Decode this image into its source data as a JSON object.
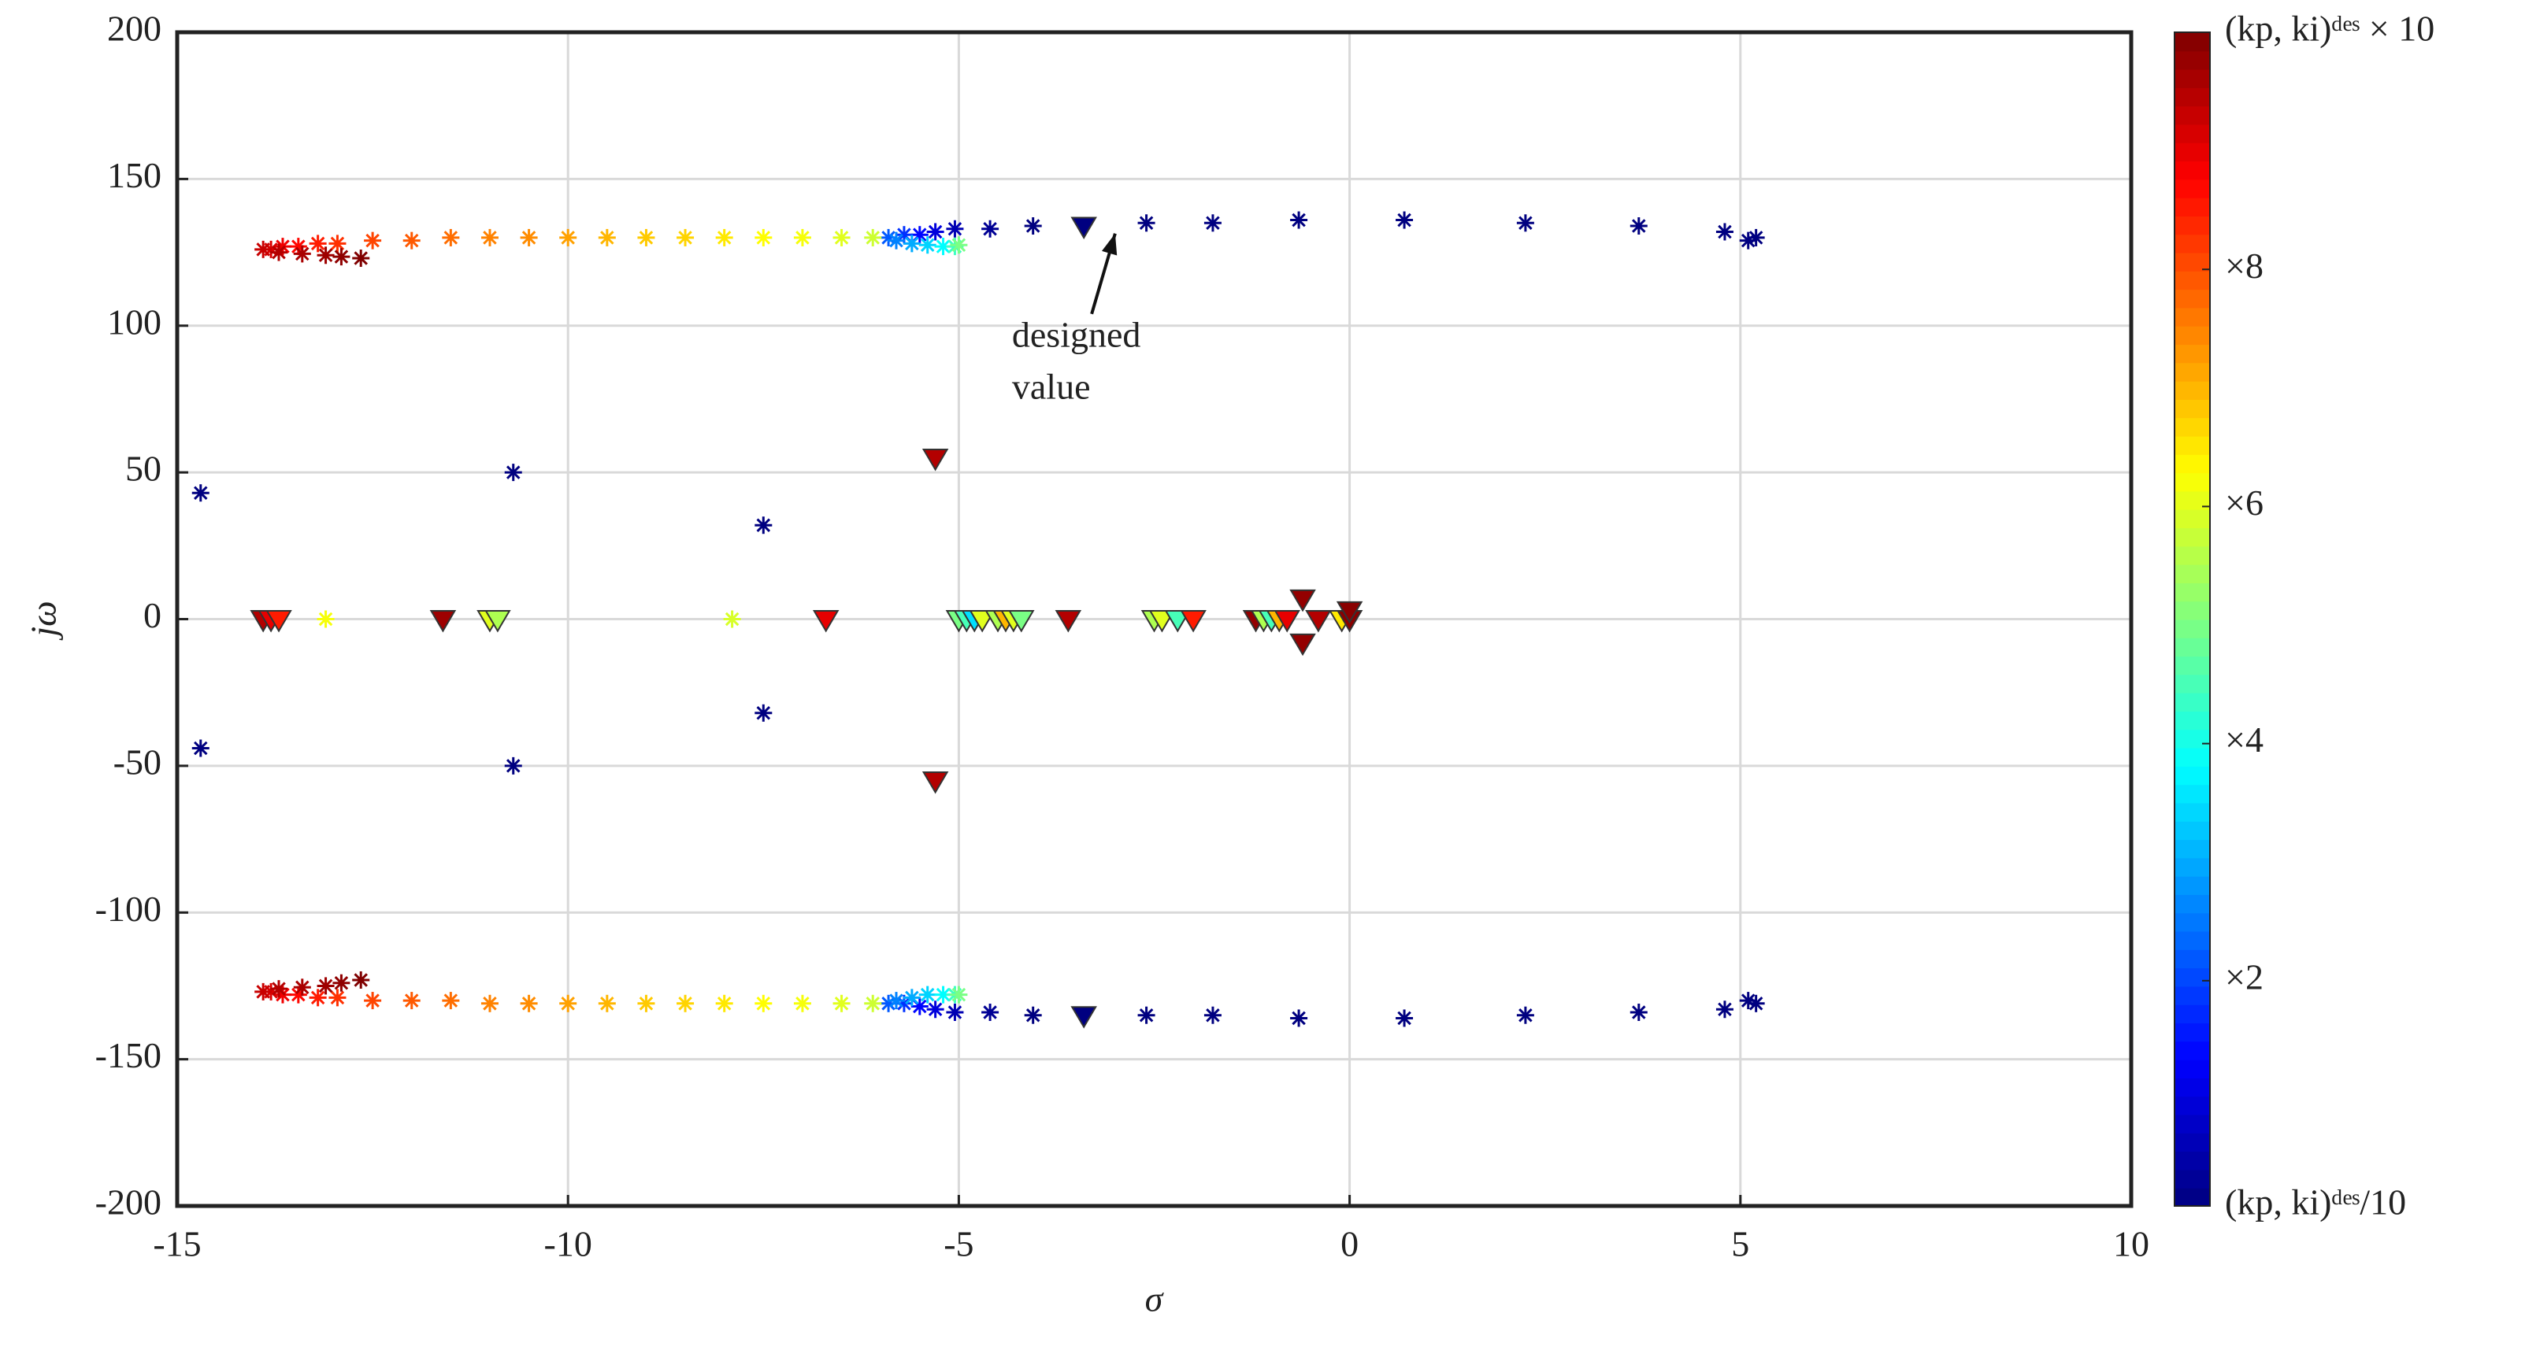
{
  "chart_data": {
    "type": "scatter",
    "xlabel": "σ",
    "ylabel": "jω",
    "xlim": [
      -15,
      10
    ],
    "xticks": [
      -15,
      -10,
      -5,
      0,
      5,
      10
    ],
    "ylim": [
      -200,
      200
    ],
    "yticks": [
      -200,
      -150,
      -100,
      -50,
      0,
      50,
      100,
      150,
      200
    ],
    "grid": true,
    "colormap": "jet",
    "clim": [
      0.1,
      10
    ],
    "cticks": [
      {
        "value": 0.1,
        "label": "(kp, ki)ᵈᵉˢ/10"
      },
      {
        "value": 2,
        "label": "×2"
      },
      {
        "value": 4,
        "label": "×4"
      },
      {
        "value": 6,
        "label": "×6"
      },
      {
        "value": 8,
        "label": "×8"
      },
      {
        "value": 10,
        "label": "(kp, ki)ᵈᵉˢ × 10"
      }
    ],
    "annotation": [
      "designed",
      "value"
    ],
    "series": [
      {
        "marker": "asterisk",
        "x": [
          5.2,
          5.1,
          4.8,
          3.7,
          2.25,
          0.7,
          -0.65,
          -1.75,
          -2.6,
          -4.05,
          -4.6,
          -5.05,
          -5.3,
          -5.5,
          -5.7,
          -5.9,
          -5.8,
          -5.6,
          -5.4,
          -5.2,
          -5.05,
          -5.0,
          -6.1,
          -6.5,
          -7,
          -7.5,
          -8,
          -8.5,
          -9,
          -9.5,
          -10,
          -10.5,
          -11,
          -11.5,
          -12,
          -12.5,
          -12.95,
          -13.2,
          -13.45,
          -13.65,
          -13.8,
          -13.9,
          -13.7,
          -13.4,
          -13.1,
          -12.9,
          -12.65,
          5.2,
          5.1,
          4.8,
          3.7,
          2.25,
          0.7,
          -0.65,
          -1.75,
          -2.6,
          -4.05,
          -4.6,
          -5.05,
          -5.3,
          -5.5,
          -5.7,
          -5.9,
          -5.8,
          -5.6,
          -5.4,
          -5.2,
          -5.05,
          -5.0,
          -6.1,
          -6.5,
          -7,
          -7.5,
          -8,
          -8.5,
          -9,
          -9.5,
          -10,
          -10.5,
          -11,
          -11.5,
          -12,
          -12.5,
          -12.95,
          -13.2,
          -13.45,
          -13.65,
          -13.8,
          -13.9,
          -13.7,
          -13.4,
          -13.1,
          -12.9,
          -12.65,
          -13.1,
          -7.9,
          -14.7,
          -14.7,
          -10.7,
          -10.7,
          -7.5,
          -7.5
        ],
        "y": [
          130,
          129,
          132,
          134,
          135,
          136,
          136,
          135,
          135,
          134,
          133,
          133,
          132,
          131,
          131,
          130,
          129,
          128,
          127.5,
          127,
          127,
          127.5,
          130,
          130,
          130,
          130,
          130,
          130,
          130,
          130,
          130,
          130,
          130,
          130,
          129,
          129,
          128,
          128,
          127,
          127,
          126,
          126,
          125,
          124.5,
          124,
          123.5,
          123,
          -131,
          -130,
          -133,
          -134,
          -135,
          -136,
          -136,
          -135,
          -135,
          -135,
          -134,
          -134,
          -133,
          -132,
          -131,
          -131,
          -130,
          -129,
          -128,
          -128,
          -128,
          -128,
          -131,
          -131,
          -131,
          -131,
          -131,
          -131,
          -131,
          -131,
          -131,
          -131,
          -131,
          -130,
          -130,
          -130,
          -129,
          -129,
          -128,
          -128,
          -127,
          -127,
          -126,
          -125.5,
          -125,
          -124,
          -123,
          0,
          0,
          43,
          -44,
          50,
          -50,
          32,
          -32
        ],
        "c": [
          0.1,
          0.1,
          0.1,
          0.1,
          0.1,
          0.1,
          0.1,
          0.1,
          0.1,
          0.1,
          0.3,
          0.6,
          1.0,
          1.4,
          1.8,
          2.2,
          2.6,
          3.0,
          3.4,
          3.8,
          4.4,
          5.0,
          5.8,
          6.0,
          6.2,
          6.3,
          6.5,
          6.7,
          6.8,
          7.0,
          7.2,
          7.4,
          7.5,
          7.7,
          7.9,
          8.1,
          8.3,
          8.5,
          8.7,
          8.9,
          9.1,
          9.3,
          9.5,
          9.6,
          9.7,
          9.85,
          10,
          0.1,
          0.1,
          0.1,
          0.1,
          0.1,
          0.1,
          0.1,
          0.1,
          0.1,
          0.1,
          0.3,
          0.6,
          1.0,
          1.4,
          1.8,
          2.2,
          2.6,
          3.0,
          3.4,
          3.8,
          4.4,
          5.0,
          5.8,
          6.0,
          6.2,
          6.3,
          6.5,
          6.7,
          6.8,
          7.0,
          7.2,
          7.4,
          7.5,
          7.7,
          7.9,
          8.1,
          8.3,
          8.5,
          8.7,
          8.9,
          9.1,
          9.3,
          9.5,
          9.6,
          9.7,
          9.85,
          10,
          6.2,
          5.9,
          0.1,
          0.1,
          0.1,
          0.1,
          0.1,
          0.1
        ]
      },
      {
        "marker": "triangle",
        "x": [
          -13.9,
          -13.8,
          -13.7,
          -11.6,
          -11.0,
          -10.9,
          -6.7,
          -5.3,
          -5.3,
          -5.0,
          -4.9,
          -4.8,
          -4.7,
          -4.5,
          -4.4,
          -4.3,
          -4.2,
          -3.6,
          -2.5,
          -2.4,
          -2.2,
          -2.0,
          -1.2,
          -1.1,
          -1.0,
          -0.9,
          -0.8,
          -0.6,
          -0.6,
          -0.4,
          -0.1,
          0,
          0,
          -3.4,
          -3.4
        ],
        "y": [
          0,
          0,
          0,
          0,
          0,
          0,
          0,
          55,
          -55,
          0,
          0,
          0,
          0,
          0,
          0,
          0,
          0,
          0,
          0,
          0,
          0,
          0,
          0,
          0,
          0,
          0,
          0,
          7,
          -8,
          0,
          0,
          0,
          3,
          134,
          -135
        ],
        "c": [
          9.5,
          9.0,
          8.5,
          9.7,
          6.0,
          5.5,
          9.0,
          9.5,
          9.5,
          5.0,
          4.5,
          3.5,
          6.0,
          5.5,
          7.0,
          6.0,
          5.0,
          9.5,
          5.5,
          6.0,
          4.5,
          8.5,
          9.8,
          5.5,
          4.5,
          7.0,
          9.0,
          9.8,
          9.8,
          9.5,
          6.5,
          9.9,
          9.9,
          0.1,
          0.1
        ]
      }
    ]
  }
}
